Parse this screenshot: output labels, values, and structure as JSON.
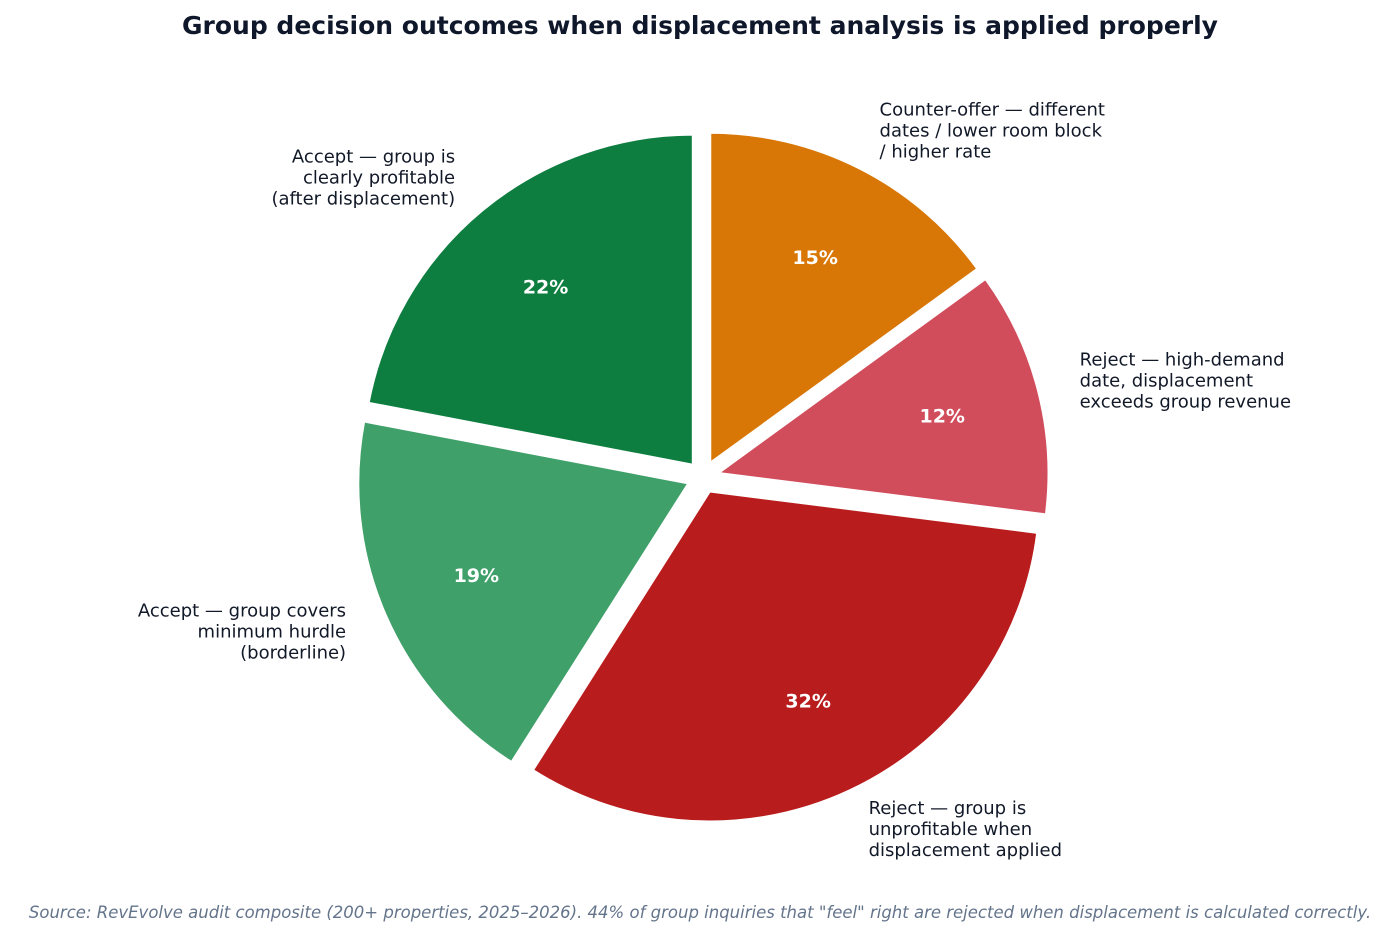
{
  "chart_data": {
    "type": "pie",
    "title": "Group decision outcomes when displacement analysis is applied properly",
    "footnote": "Source: RevEvolve audit composite (200+ properties, 2025–2026). 44% of group inquiries that \"feel\" right are rejected when displacement is calculated correctly.",
    "slices": [
      {
        "label": "Counter-offer — different dates / lower room block / higher rate",
        "label_lines": [
          "Counter-offer — different",
          "dates / lower room block",
          "/ higher rate"
        ],
        "value": 15,
        "pct_label": "15%",
        "color": "#d97706"
      },
      {
        "label": "Reject — high-demand date, displacement exceeds group revenue",
        "label_lines": [
          "Reject — high-demand",
          "date, displacement",
          "exceeds group revenue"
        ],
        "value": 12,
        "pct_label": "12%",
        "color": "#d14d5c"
      },
      {
        "label": "Reject — group is unprofitable when displacement applied",
        "label_lines": [
          "Reject — group is",
          "unprofitable when",
          "displacement applied"
        ],
        "value": 32,
        "pct_label": "32%",
        "color": "#b91c1c"
      },
      {
        "label": "Accept — group covers minimum hurdle (borderline)",
        "label_lines": [
          "Accept — group covers",
          "minimum hurdle",
          "(borderline)"
        ],
        "value": 19,
        "pct_label": "19%",
        "color": "#40a069"
      },
      {
        "label": "Accept — group is clearly profitable (after displacement)",
        "label_lines": [
          "Accept — group is",
          "clearly profitable",
          "(after displacement)"
        ],
        "value": 22,
        "pct_label": "22%",
        "color": "#0e7e40"
      }
    ]
  }
}
